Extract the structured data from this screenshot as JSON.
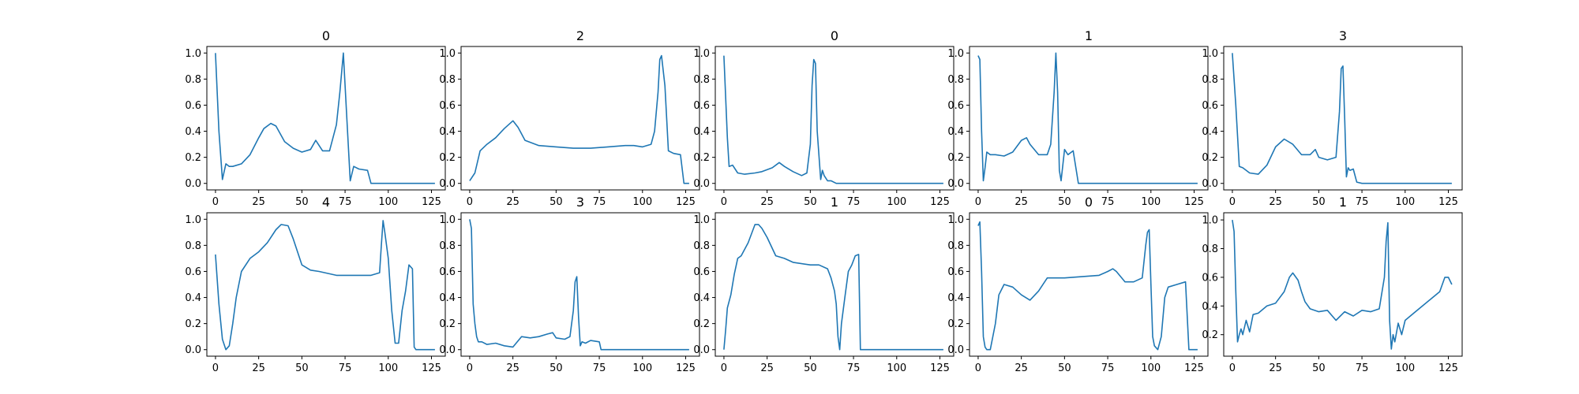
{
  "chart_data": [
    {
      "type": "line",
      "title": "0",
      "xlabel": "",
      "ylabel": "",
      "xlim": [
        -5,
        133
      ],
      "ylim": [
        -0.05,
        1.05
      ],
      "xticks": [
        0,
        25,
        50,
        75,
        100,
        125
      ],
      "yticks": [
        0.0,
        0.2,
        0.4,
        0.6,
        0.8,
        1.0
      ],
      "color": "#1f77b4",
      "series": [
        {
          "x": [
            0,
            2,
            4,
            6,
            8,
            10,
            15,
            20,
            25,
            28,
            32,
            35,
            40,
            45,
            50,
            55,
            58,
            62,
            66,
            70,
            72,
            74,
            76,
            78,
            80,
            83,
            88,
            90,
            100,
            110,
            127
          ],
          "y": [
            1.0,
            0.4,
            0.03,
            0.15,
            0.13,
            0.13,
            0.15,
            0.22,
            0.35,
            0.42,
            0.46,
            0.44,
            0.32,
            0.27,
            0.24,
            0.26,
            0.33,
            0.25,
            0.25,
            0.45,
            0.7,
            1.0,
            0.5,
            0.02,
            0.13,
            0.11,
            0.1,
            0.0,
            0.0,
            0.0,
            0.0
          ]
        }
      ]
    },
    {
      "type": "line",
      "title": "2",
      "xlabel": "",
      "ylabel": "",
      "xlim": [
        -5,
        133
      ],
      "ylim": [
        -0.05,
        1.05
      ],
      "xticks": [
        0,
        25,
        50,
        75,
        100,
        125
      ],
      "yticks": [
        0.0,
        0.2,
        0.4,
        0.6,
        0.8,
        1.0
      ],
      "color": "#1f77b4",
      "series": [
        {
          "x": [
            0,
            3,
            6,
            10,
            15,
            20,
            25,
            28,
            32,
            40,
            50,
            60,
            70,
            80,
            90,
            95,
            100,
            105,
            107,
            109,
            110,
            111,
            113,
            115,
            118,
            122,
            124,
            125,
            127
          ],
          "y": [
            0.02,
            0.08,
            0.25,
            0.3,
            0.35,
            0.42,
            0.48,
            0.43,
            0.33,
            0.29,
            0.28,
            0.27,
            0.27,
            0.28,
            0.29,
            0.29,
            0.28,
            0.3,
            0.4,
            0.7,
            0.95,
            0.98,
            0.75,
            0.25,
            0.23,
            0.22,
            0.0,
            0.0,
            0.0
          ]
        }
      ]
    },
    {
      "type": "line",
      "title": "0",
      "xlabel": "",
      "ylabel": "",
      "xlim": [
        -5,
        133
      ],
      "ylim": [
        -0.05,
        1.05
      ],
      "xticks": [
        0,
        25,
        50,
        75,
        100,
        125
      ],
      "yticks": [
        0.0,
        0.2,
        0.4,
        0.6,
        0.8,
        1.0
      ],
      "color": "#1f77b4",
      "series": [
        {
          "x": [
            0,
            2,
            3,
            5,
            8,
            12,
            18,
            22,
            28,
            32,
            35,
            40,
            45,
            48,
            50,
            51,
            52,
            53,
            54,
            56,
            57,
            58,
            60,
            62,
            65,
            70,
            80,
            127
          ],
          "y": [
            0.98,
            0.35,
            0.13,
            0.14,
            0.08,
            0.07,
            0.08,
            0.09,
            0.12,
            0.16,
            0.13,
            0.09,
            0.06,
            0.08,
            0.3,
            0.75,
            0.95,
            0.92,
            0.4,
            0.03,
            0.1,
            0.06,
            0.02,
            0.02,
            0.0,
            0.0,
            0.0,
            0.0
          ]
        }
      ]
    },
    {
      "type": "line",
      "title": "1",
      "xlabel": "",
      "ylabel": "",
      "xlim": [
        -5,
        133
      ],
      "ylim": [
        -0.05,
        1.05
      ],
      "xticks": [
        0,
        25,
        50,
        75,
        100,
        125
      ],
      "yticks": [
        0.0,
        0.2,
        0.4,
        0.6,
        0.8,
        1.0
      ],
      "color": "#1f77b4",
      "series": [
        {
          "x": [
            0,
            1,
            2,
            3,
            4,
            5,
            7,
            10,
            15,
            20,
            25,
            28,
            30,
            35,
            40,
            42,
            44,
            45,
            46,
            47,
            48,
            50,
            52,
            55,
            58,
            60,
            70,
            127
          ],
          "y": [
            0.98,
            0.95,
            0.4,
            0.02,
            0.12,
            0.24,
            0.22,
            0.22,
            0.21,
            0.24,
            0.33,
            0.35,
            0.3,
            0.22,
            0.22,
            0.3,
            0.7,
            1.0,
            0.7,
            0.1,
            0.02,
            0.26,
            0.22,
            0.25,
            0.0,
            0.0,
            0.0,
            0.0
          ]
        }
      ]
    },
    {
      "type": "line",
      "title": "3",
      "xlabel": "",
      "ylabel": "",
      "xlim": [
        -5,
        133
      ],
      "ylim": [
        -0.05,
        1.05
      ],
      "xticks": [
        0,
        25,
        50,
        75,
        100,
        125
      ],
      "yticks": [
        0.0,
        0.2,
        0.4,
        0.6,
        0.8,
        1.0
      ],
      "color": "#1f77b4",
      "series": [
        {
          "x": [
            0,
            2,
            4,
            6,
            10,
            15,
            20,
            25,
            30,
            35,
            40,
            45,
            48,
            50,
            55,
            60,
            62,
            63,
            64,
            65,
            66,
            67,
            68,
            70,
            72,
            75,
            80,
            127
          ],
          "y": [
            1.0,
            0.6,
            0.13,
            0.12,
            0.08,
            0.07,
            0.14,
            0.28,
            0.34,
            0.3,
            0.22,
            0.22,
            0.26,
            0.2,
            0.18,
            0.2,
            0.55,
            0.88,
            0.9,
            0.5,
            0.05,
            0.12,
            0.1,
            0.11,
            0.01,
            0.0,
            0.0,
            0.0
          ]
        }
      ]
    },
    {
      "type": "line",
      "title": "4",
      "xlabel": "",
      "ylabel": "",
      "xlim": [
        -5,
        133
      ],
      "ylim": [
        -0.05,
        1.05
      ],
      "xticks": [
        0,
        25,
        50,
        75,
        100,
        125
      ],
      "yticks": [
        0.0,
        0.2,
        0.4,
        0.6,
        0.8,
        1.0
      ],
      "color": "#1f77b4",
      "series": [
        {
          "x": [
            0,
            2,
            4,
            6,
            8,
            10,
            12,
            15,
            20,
            25,
            30,
            35,
            38,
            42,
            45,
            50,
            55,
            60,
            70,
            80,
            90,
            95,
            96,
            97,
            98,
            100,
            102,
            104,
            106,
            108,
            110,
            112,
            114,
            115,
            116,
            118,
            120,
            127
          ],
          "y": [
            0.73,
            0.35,
            0.08,
            0.0,
            0.03,
            0.2,
            0.4,
            0.6,
            0.7,
            0.75,
            0.82,
            0.92,
            0.96,
            0.95,
            0.85,
            0.65,
            0.61,
            0.6,
            0.57,
            0.57,
            0.57,
            0.59,
            0.8,
            0.99,
            0.9,
            0.7,
            0.3,
            0.05,
            0.05,
            0.3,
            0.45,
            0.65,
            0.62,
            0.02,
            0.0,
            0.0,
            0.0,
            0.0
          ]
        }
      ]
    },
    {
      "type": "line",
      "title": "3",
      "xlabel": "",
      "ylabel": "",
      "xlim": [
        -5,
        133
      ],
      "ylim": [
        -0.05,
        1.05
      ],
      "xticks": [
        0,
        25,
        50,
        75,
        100,
        125
      ],
      "yticks": [
        0.0,
        0.2,
        0.4,
        0.6,
        0.8,
        1.0
      ],
      "color": "#1f77b4",
      "series": [
        {
          "x": [
            0,
            1,
            2,
            3,
            4,
            5,
            7,
            10,
            15,
            20,
            25,
            30,
            35,
            40,
            45,
            48,
            50,
            55,
            58,
            60,
            61,
            62,
            63,
            64,
            65,
            67,
            70,
            75,
            76,
            80,
            127
          ],
          "y": [
            1.0,
            0.93,
            0.35,
            0.2,
            0.1,
            0.06,
            0.06,
            0.04,
            0.05,
            0.03,
            0.02,
            0.1,
            0.09,
            0.1,
            0.12,
            0.13,
            0.09,
            0.08,
            0.1,
            0.3,
            0.52,
            0.56,
            0.25,
            0.03,
            0.06,
            0.05,
            0.07,
            0.06,
            0.0,
            0.0,
            0.0
          ]
        }
      ]
    },
    {
      "type": "line",
      "title": "1",
      "xlabel": "",
      "ylabel": "",
      "xlim": [
        -5,
        133
      ],
      "ylim": [
        -0.05,
        1.05
      ],
      "xticks": [
        0,
        25,
        50,
        75,
        100,
        125
      ],
      "yticks": [
        0.0,
        0.2,
        0.4,
        0.6,
        0.8,
        1.0
      ],
      "color": "#1f77b4",
      "series": [
        {
          "x": [
            0,
            1,
            2,
            4,
            6,
            8,
            10,
            14,
            18,
            20,
            22,
            25,
            30,
            35,
            40,
            50,
            55,
            60,
            62,
            64,
            65,
            66,
            67,
            68,
            70,
            72,
            74,
            76,
            78,
            79,
            80,
            127
          ],
          "y": [
            0.0,
            0.15,
            0.32,
            0.42,
            0.58,
            0.7,
            0.72,
            0.82,
            0.96,
            0.96,
            0.93,
            0.86,
            0.72,
            0.7,
            0.67,
            0.65,
            0.65,
            0.62,
            0.55,
            0.45,
            0.35,
            0.1,
            0.0,
            0.2,
            0.4,
            0.6,
            0.65,
            0.72,
            0.73,
            0.0,
            0.0,
            0.0
          ]
        }
      ]
    },
    {
      "type": "line",
      "title": "0",
      "xlabel": "",
      "ylabel": "",
      "xlim": [
        -5,
        133
      ],
      "ylim": [
        -0.05,
        1.05
      ],
      "xticks": [
        0,
        25,
        50,
        75,
        100,
        125
      ],
      "yticks": [
        0.0,
        0.2,
        0.4,
        0.6,
        0.8,
        1.0
      ],
      "color": "#1f77b4",
      "series": [
        {
          "x": [
            0,
            1,
            2,
            3,
            4,
            5,
            7,
            10,
            12,
            15,
            20,
            25,
            30,
            35,
            40,
            50,
            60,
            70,
            75,
            78,
            80,
            85,
            90,
            95,
            97,
            98,
            99,
            100,
            101,
            102,
            104,
            106,
            108,
            110,
            115,
            120,
            122,
            127
          ],
          "y": [
            0.95,
            0.98,
            0.6,
            0.1,
            0.02,
            0.0,
            0.0,
            0.2,
            0.42,
            0.5,
            0.48,
            0.42,
            0.38,
            0.45,
            0.55,
            0.55,
            0.56,
            0.57,
            0.6,
            0.62,
            0.6,
            0.52,
            0.52,
            0.55,
            0.8,
            0.9,
            0.92,
            0.5,
            0.1,
            0.03,
            0.0,
            0.1,
            0.4,
            0.48,
            0.5,
            0.52,
            0.0,
            0.0
          ]
        }
      ]
    },
    {
      "type": "line",
      "title": "1",
      "xlabel": "",
      "ylabel": "",
      "xlim": [
        -5,
        133
      ],
      "ylim": [
        0.05,
        1.05
      ],
      "xticks": [
        0,
        25,
        50,
        75,
        100,
        125
      ],
      "yticks": [
        0.2,
        0.4,
        0.6,
        0.8,
        1.0
      ],
      "color": "#1f77b4",
      "series": [
        {
          "x": [
            0,
            1,
            2,
            3,
            4,
            5,
            6,
            8,
            10,
            12,
            15,
            20,
            25,
            30,
            33,
            35,
            38,
            40,
            42,
            45,
            50,
            55,
            60,
            65,
            70,
            75,
            80,
            85,
            88,
            89,
            90,
            91,
            92,
            93,
            94,
            96,
            98,
            100,
            105,
            110,
            115,
            120,
            123,
            125,
            127
          ],
          "y": [
            1.0,
            0.92,
            0.5,
            0.15,
            0.2,
            0.24,
            0.2,
            0.3,
            0.22,
            0.34,
            0.35,
            0.4,
            0.42,
            0.5,
            0.6,
            0.63,
            0.58,
            0.5,
            0.43,
            0.38,
            0.36,
            0.37,
            0.3,
            0.36,
            0.33,
            0.37,
            0.36,
            0.38,
            0.6,
            0.85,
            0.98,
            0.3,
            0.1,
            0.2,
            0.15,
            0.28,
            0.2,
            0.3,
            0.35,
            0.4,
            0.45,
            0.5,
            0.6,
            0.6,
            0.55
          ]
        }
      ]
    }
  ]
}
